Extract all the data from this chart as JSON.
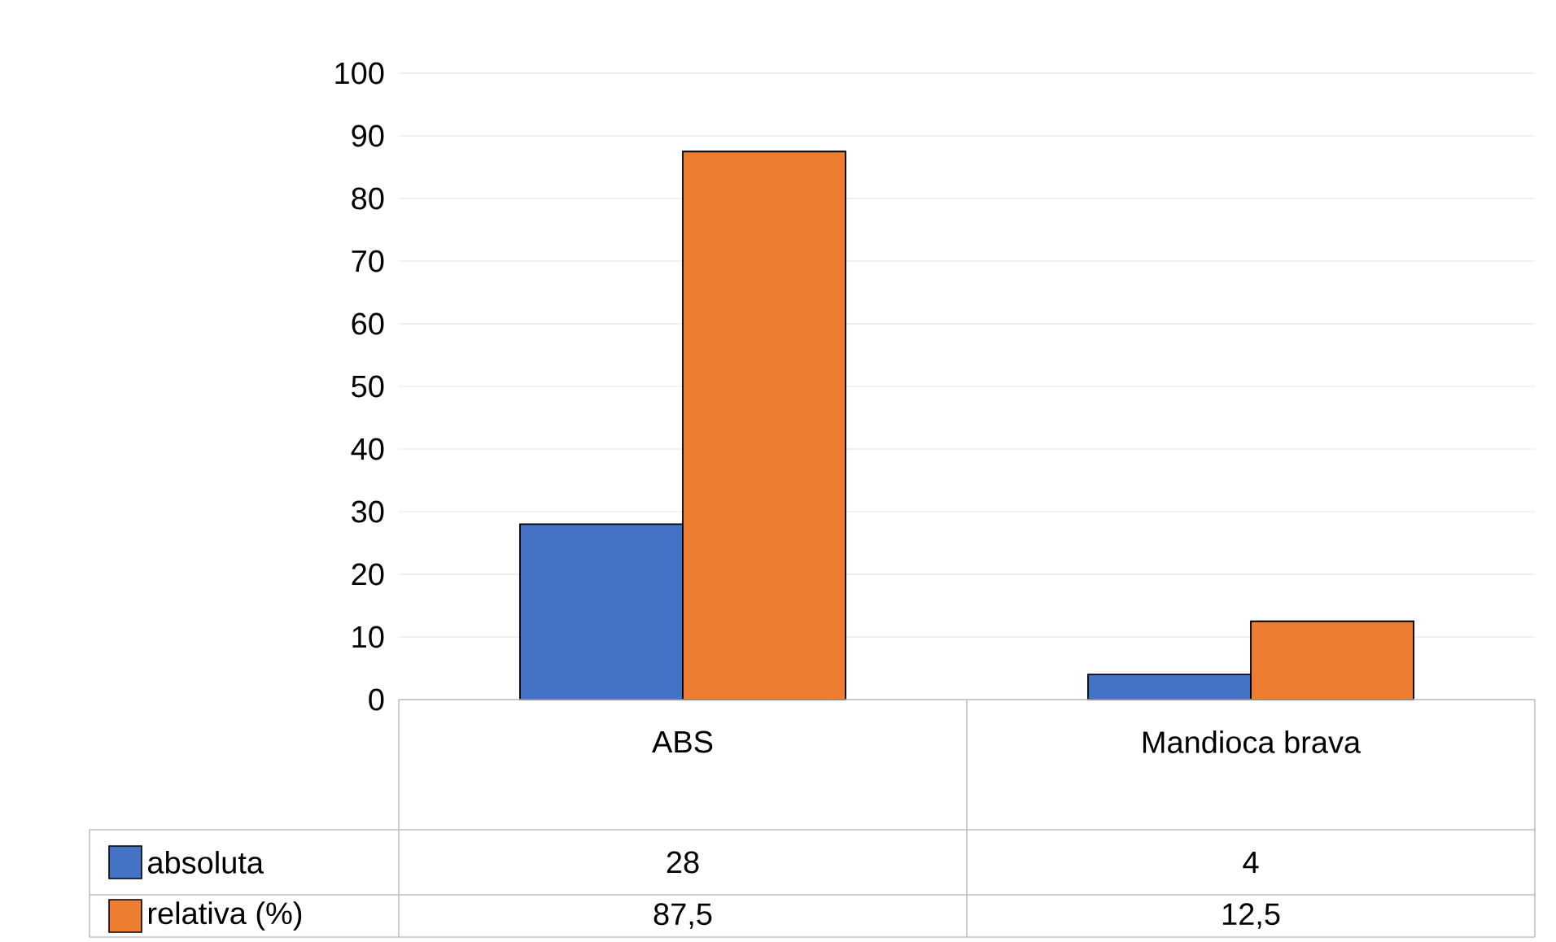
{
  "chart_data": {
    "type": "bar",
    "categories": [
      "ABS",
      "Mandioca brava"
    ],
    "series": [
      {
        "name": "absoluta",
        "color": "#4472c4",
        "values": [
          28,
          4
        ],
        "value_labels": [
          "28",
          "4"
        ]
      },
      {
        "name": "relativa (%)",
        "color": "#ed7d31",
        "values": [
          87.5,
          12.5
        ],
        "value_labels": [
          "87,5",
          "12,5"
        ]
      }
    ],
    "ylim": [
      0,
      100
    ],
    "yticks": [
      0,
      10,
      20,
      30,
      40,
      50,
      60,
      70,
      80,
      90,
      100
    ],
    "grid": "y",
    "legend": "bottom"
  }
}
